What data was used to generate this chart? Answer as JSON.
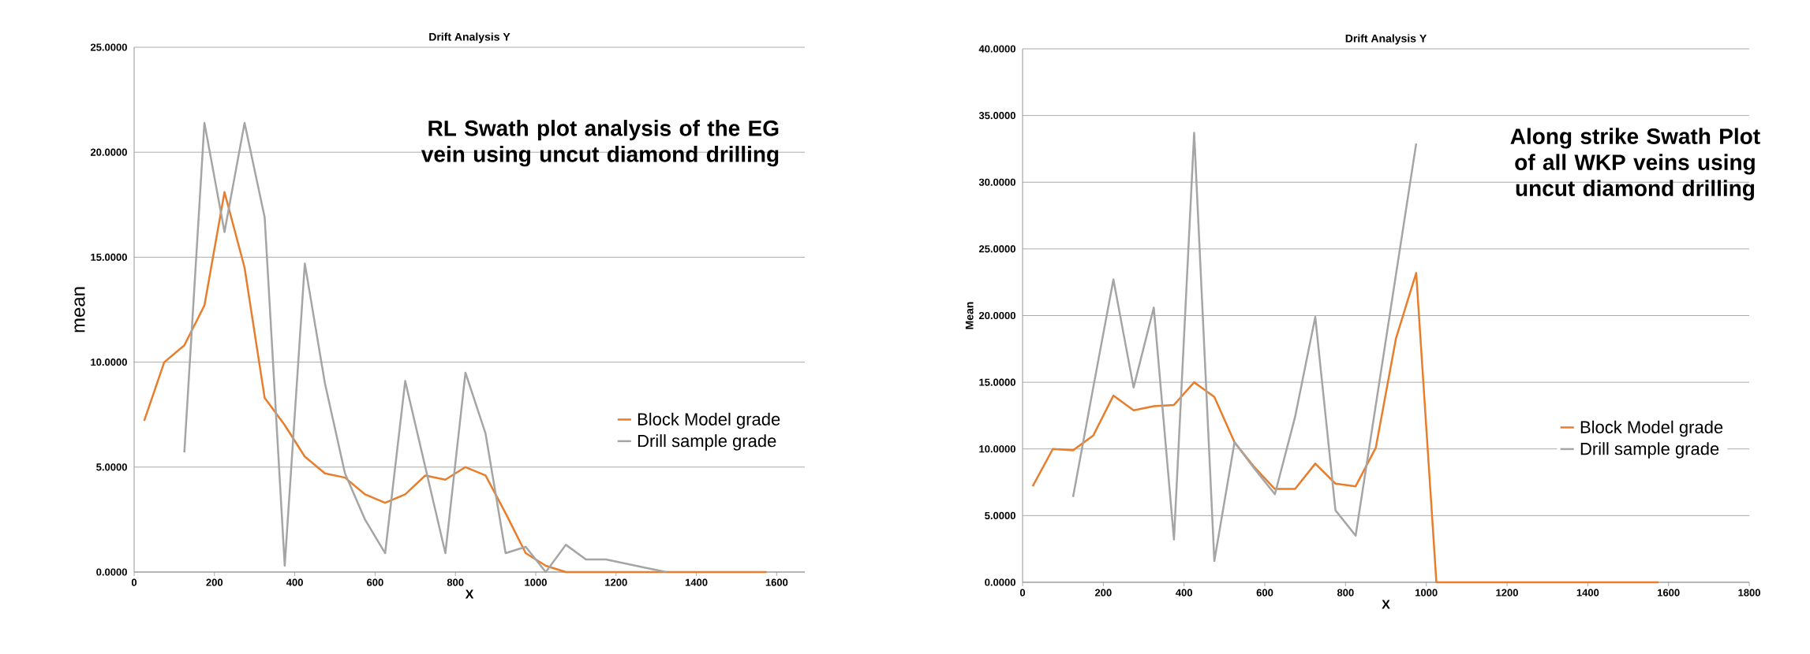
{
  "chart_data": [
    {
      "type": "line",
      "title": "Drift Analysis Y",
      "xlabel": "X",
      "ylabel": "mean",
      "annotations": [
        "RL Swath plot analysis of the EG vein using uncut diamond drilling"
      ],
      "x": [
        25,
        75,
        125,
        175,
        225,
        275,
        325,
        375,
        425,
        475,
        525,
        575,
        625,
        675,
        725,
        775,
        825,
        875,
        925,
        975,
        1025,
        1075,
        1125,
        1175,
        1225,
        1275,
        1325,
        1375,
        1425,
        1475,
        1525,
        1575
      ],
      "series": [
        {
          "name": "Block Model grade",
          "color": "#e87d2c",
          "values": [
            7.2,
            10.0,
            10.8,
            12.7,
            18.1,
            14.5,
            8.3,
            7.0,
            5.5,
            4.7,
            4.5,
            3.7,
            3.3,
            3.7,
            4.6,
            4.4,
            5.0,
            4.6,
            2.8,
            0.9,
            0.3,
            0,
            0,
            0,
            0,
            0,
            0,
            0,
            0,
            0,
            0,
            0
          ]
        },
        {
          "name": "Drill sample grade",
          "color": "#a5a5a5",
          "values": [
            null,
            null,
            5.7,
            21.4,
            16.2,
            21.4,
            16.9,
            0.3,
            14.7,
            9.0,
            4.7,
            2.5,
            0.9,
            9.1,
            5.0,
            0.9,
            9.5,
            6.6,
            0.9,
            1.2,
            0.0,
            1.3,
            0.6,
            0.6,
            0.4,
            0.2,
            0.0,
            null,
            null,
            null,
            null,
            null
          ]
        }
      ],
      "xlim": [
        0,
        1670
      ],
      "ylim": [
        0,
        25
      ],
      "xticks": [
        0,
        200,
        400,
        600,
        800,
        1000,
        1200,
        1400,
        1600
      ],
      "yticks": [
        {
          "value": 0,
          "label": "0.0000"
        },
        {
          "value": 5,
          "label": "5.0000"
        },
        {
          "value": 10,
          "label": "10.0000"
        },
        {
          "value": 15,
          "label": "15.0000"
        },
        {
          "value": 20,
          "label": "20.0000"
        },
        {
          "value": 25,
          "label": "25.0000"
        }
      ],
      "grid": "y",
      "legend": "right",
      "marker": "none",
      "line_style": "solid"
    },
    {
      "type": "line",
      "title": "Drift Analysis Y",
      "xlabel": "X",
      "ylabel": "Mean",
      "annotations": [
        "Along strike Swath Plot of all WKP veins using uncut diamond drilling"
      ],
      "x": [
        25,
        75,
        125,
        175,
        225,
        275,
        325,
        375,
        425,
        475,
        525,
        575,
        625,
        675,
        725,
        775,
        825,
        875,
        925,
        975,
        1025,
        1075,
        1125,
        1175,
        1225,
        1275,
        1325,
        1375,
        1425,
        1475,
        1525,
        1575
      ],
      "series": [
        {
          "name": "Block Model grade",
          "color": "#e87d2c",
          "values": [
            7.2,
            10.0,
            9.9,
            11.0,
            14.0,
            12.9,
            13.2,
            13.3,
            15.0,
            13.9,
            10.5,
            8.6,
            7.0,
            7.0,
            8.9,
            7.4,
            7.2,
            10.1,
            18.3,
            23.2,
            0,
            0,
            0,
            0,
            0,
            0,
            0,
            0,
            0,
            0,
            0,
            0
          ]
        },
        {
          "name": "Drill sample grade",
          "color": "#a5a5a5",
          "values": [
            null,
            null,
            6.4,
            14.6,
            22.7,
            14.6,
            20.6,
            3.2,
            33.7,
            1.6,
            10.5,
            8.5,
            6.6,
            12.4,
            19.9,
            5.4,
            3.5,
            13.3,
            23.1,
            32.9,
            null,
            null,
            null,
            null,
            null,
            null,
            null,
            null,
            null,
            null,
            null,
            null
          ]
        }
      ],
      "xlim": [
        0,
        1800
      ],
      "ylim": [
        0,
        40
      ],
      "xticks": [
        0,
        200,
        400,
        600,
        800,
        1000,
        1200,
        1400,
        1600,
        1800
      ],
      "yticks": [
        {
          "value": 0,
          "label": "0.0000"
        },
        {
          "value": 5,
          "label": "5.0000"
        },
        {
          "value": 10,
          "label": "10.0000"
        },
        {
          "value": 15,
          "label": "15.0000"
        },
        {
          "value": 20,
          "label": "20.0000"
        },
        {
          "value": 25,
          "label": "25.0000"
        },
        {
          "value": 30,
          "label": "30.0000"
        },
        {
          "value": 35,
          "label": "35.0000"
        },
        {
          "value": 40,
          "label": "40.0000"
        }
      ],
      "grid": "y",
      "legend": "right",
      "marker": "none",
      "line_style": "solid"
    }
  ]
}
